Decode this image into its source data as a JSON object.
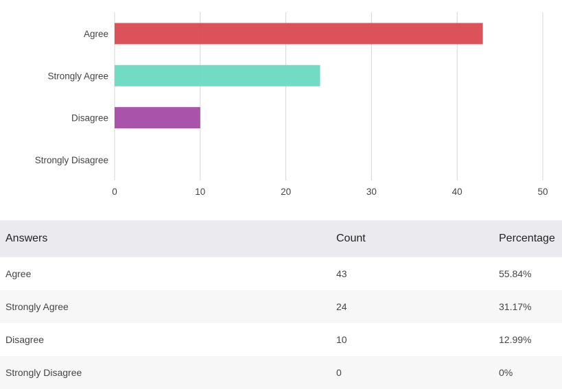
{
  "chart_data": {
    "type": "bar",
    "orientation": "horizontal",
    "categories": [
      "Agree",
      "Strongly Agree",
      "Disagree",
      "Strongly Disagree"
    ],
    "values": [
      43,
      24,
      10,
      0
    ],
    "colors": [
      "#d94a4f",
      "#6ad9c0",
      "#a54aa5",
      "#cccccc"
    ],
    "xlim": [
      0,
      50
    ],
    "xticks": [
      0,
      10,
      20,
      30,
      40,
      50
    ],
    "grid": true,
    "title": "",
    "xlabel": "",
    "ylabel": ""
  },
  "table": {
    "headers": {
      "answers": "Answers",
      "count": "Count",
      "percentage": "Percentage"
    },
    "rows": [
      {
        "answer": "Agree",
        "count": "43",
        "percentage": "55.84%"
      },
      {
        "answer": "Strongly Agree",
        "count": "24",
        "percentage": "31.17%"
      },
      {
        "answer": "Disagree",
        "count": "10",
        "percentage": "12.99%"
      },
      {
        "answer": "Strongly Disagree",
        "count": "0",
        "percentage": "0%"
      }
    ]
  }
}
